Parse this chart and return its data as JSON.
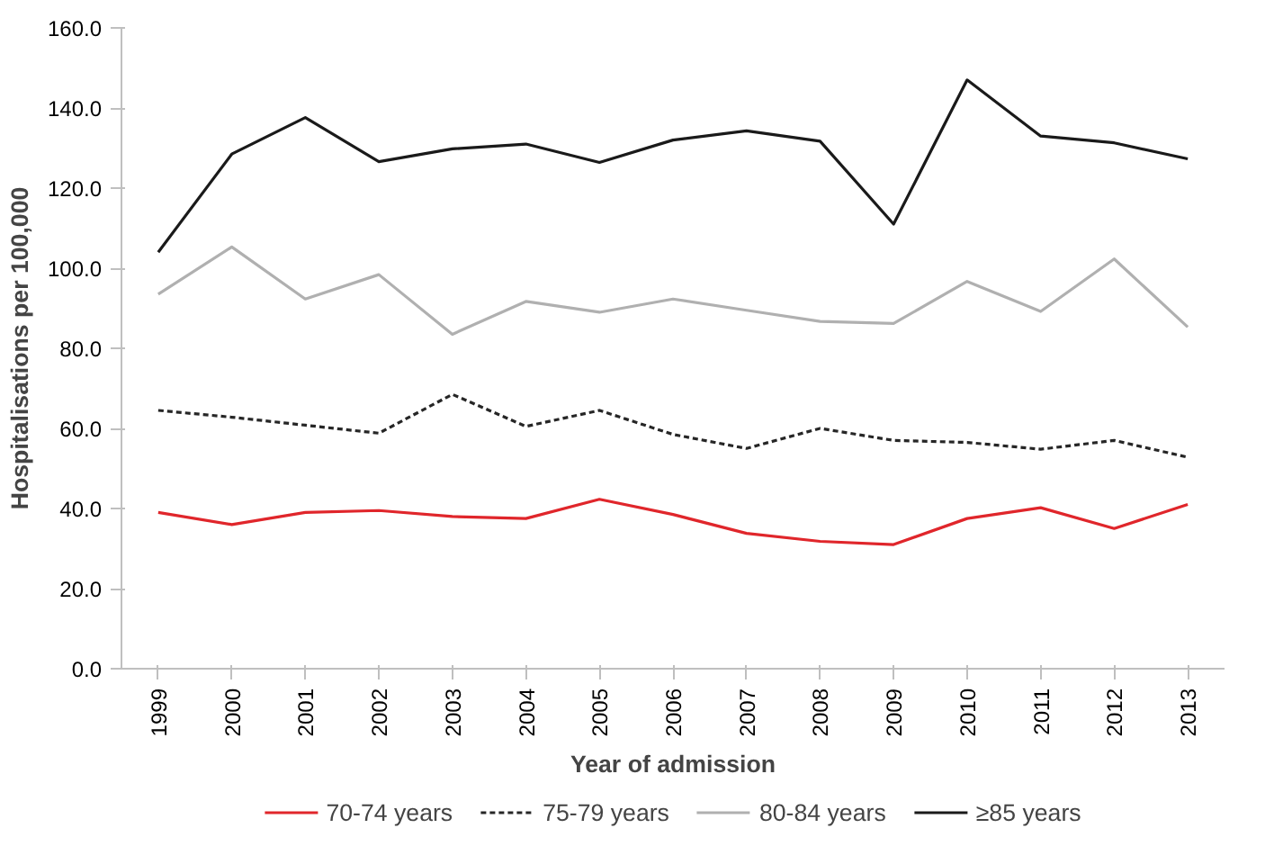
{
  "chart_data": {
    "type": "line",
    "xlabel": "Year of admission",
    "ylabel": "Hospitalisations per 100,000",
    "categories": [
      "1999",
      "2000",
      "2001",
      "2002",
      "2003",
      "2004",
      "2005",
      "2006",
      "2007",
      "2008",
      "2009",
      "2010",
      "2011",
      "2012",
      "2013"
    ],
    "ylim": [
      0,
      160
    ],
    "yticks": [
      {
        "value": 0,
        "label": "0.0"
      },
      {
        "value": 20,
        "label": "20.0"
      },
      {
        "value": 40,
        "label": "40.0"
      },
      {
        "value": 60,
        "label": "60.0"
      },
      {
        "value": 80,
        "label": "80.0"
      },
      {
        "value": 100,
        "label": "100.0"
      },
      {
        "value": 120,
        "label": "120.0"
      },
      {
        "value": 140,
        "label": "140.0"
      },
      {
        "value": 160,
        "label": "160.0"
      }
    ],
    "grid": false,
    "legend": "bottom",
    "marker": "none",
    "series": [
      {
        "name": "70-74 years",
        "color": "#e0262b",
        "line_style": "solid",
        "values": [
          39,
          36,
          39,
          39.5,
          38,
          37.5,
          42.3,
          38.5,
          33.8,
          31.8,
          31,
          37.5,
          40.2,
          35,
          41
        ]
      },
      {
        "name": "75-79 years",
        "color": "#262626",
        "line_style": "dashed",
        "values": [
          64.5,
          62.8,
          60.8,
          58.8,
          68.5,
          60.5,
          64.5,
          58.5,
          55,
          60,
          57,
          56.5,
          54.8,
          57,
          52.8
        ]
      },
      {
        "name": "80-84 years",
        "color": "#b0b0b0",
        "line_style": "solid",
        "values": [
          93.5,
          105.3,
          92.3,
          98.4,
          83.5,
          91.7,
          89,
          92.3,
          89.5,
          86.7,
          86.2,
          96.7,
          89.2,
          102.3,
          85.3
        ]
      },
      {
        "name": "≥85 years",
        "color": "#1a1a1a",
        "line_style": "solid",
        "values": [
          104,
          128.5,
          137.6,
          126.6,
          129.8,
          131,
          126.4,
          132,
          134.3,
          131.7,
          111,
          147,
          133,
          131.3,
          127.3
        ]
      }
    ]
  }
}
